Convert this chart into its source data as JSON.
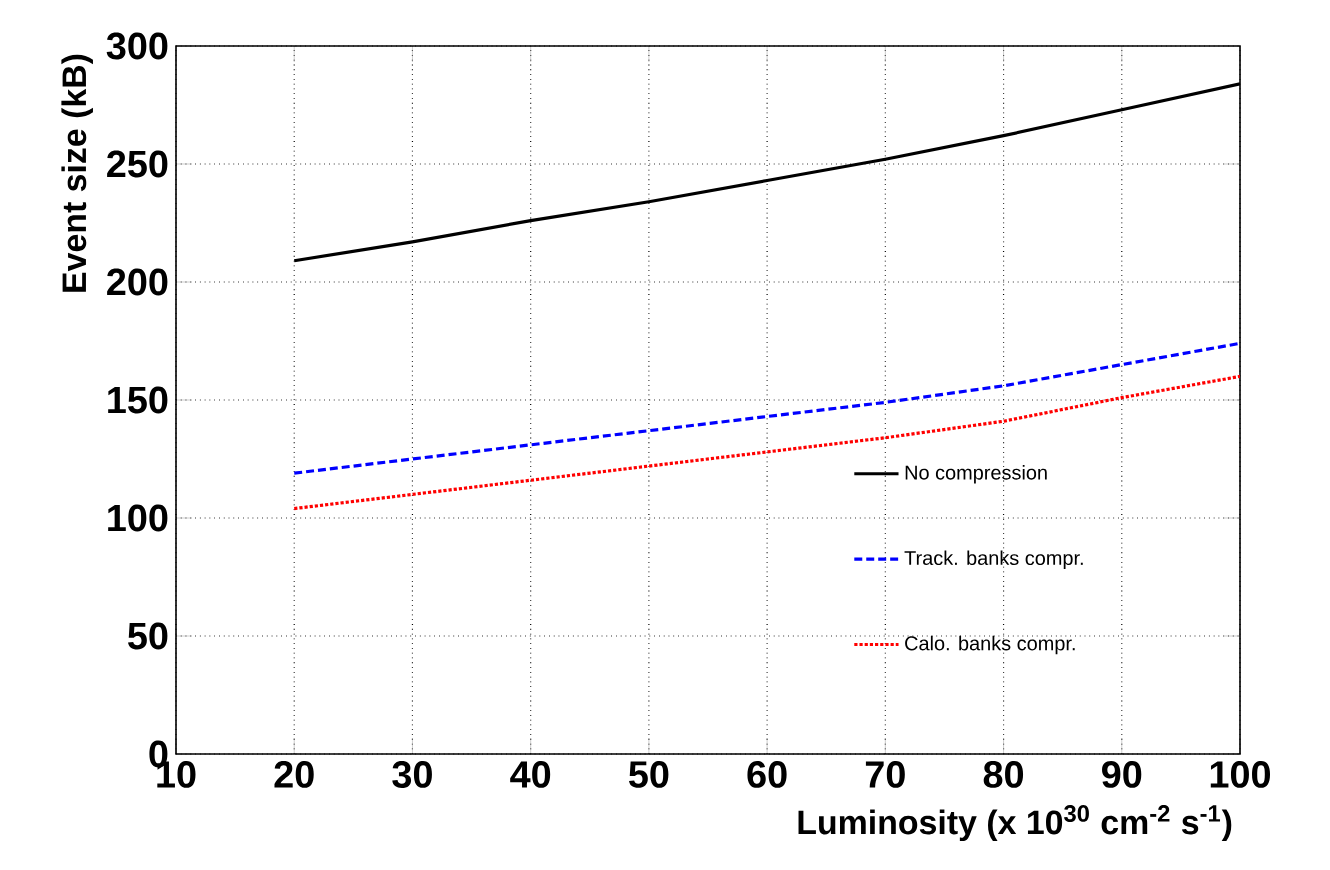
{
  "chart_data": {
    "type": "line",
    "xlabel": "Luminosity (x 10$^{30}$ cm$^{-2}$ s$^{-1}$)",
    "ylabel": "Event size (kB)",
    "x": [
      20,
      30,
      40,
      50,
      60,
      70,
      80,
      90,
      100
    ],
    "series": [
      {
        "name": "No compression",
        "color": "#000000",
        "line_style": "solid",
        "values": [
          209,
          217,
          226,
          234,
          243,
          252,
          262,
          273,
          284
        ]
      },
      {
        "name": "Track. banks compr.",
        "color": "#0000ff",
        "line_style": "dashed",
        "values": [
          119,
          125,
          131,
          137,
          143,
          149,
          156,
          165,
          174
        ]
      },
      {
        "name": "Calo. banks compr.",
        "color": "#ff0000",
        "line_style": "dotted",
        "values": [
          104,
          110,
          116,
          122,
          128,
          134,
          141,
          151,
          160
        ]
      }
    ],
    "xlim": [
      10,
      100
    ],
    "xticks": [
      10,
      20,
      30,
      40,
      50,
      60,
      70,
      80,
      90,
      100
    ],
    "ylim": [
      0,
      300
    ],
    "yticks": [
      0,
      50,
      100,
      150,
      200,
      250,
      300
    ],
    "grid": true,
    "legend": "bottom right",
    "marker": "none"
  }
}
